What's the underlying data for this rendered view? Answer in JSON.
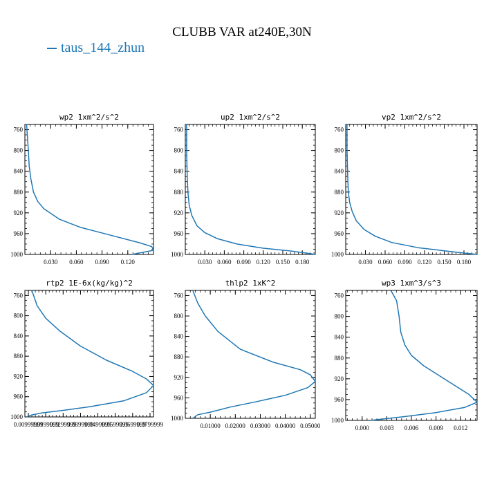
{
  "figure": {
    "title": "CLUBB VAR at240E,30N",
    "legend": {
      "label": "taus_144_zhun",
      "color": "#1f77b4"
    }
  },
  "chart_data": [
    {
      "type": "line",
      "title": "wp2  1xm^2/s^2",
      "xlim": [
        0.0,
        0.15
      ],
      "ylim": [
        1000,
        750
      ],
      "xticks": [
        0.03,
        0.06,
        0.09,
        0.12
      ],
      "xtick_labels": [
        "0.030",
        "0.060",
        "0.090",
        "0.120"
      ],
      "yticks": [
        760,
        800,
        840,
        880,
        920,
        960,
        1000
      ],
      "series": [
        {
          "name": "taus_144_zhun",
          "x": [
            0.002,
            0.003,
            0.004,
            0.005,
            0.007,
            0.01,
            0.015,
            0.022,
            0.04,
            0.065,
            0.1,
            0.135,
            0.148,
            0.15,
            0.125
          ],
          "y": [
            750,
            775,
            800,
            830,
            855,
            880,
            898,
            912,
            932,
            948,
            963,
            978,
            985,
            992,
            1000
          ]
        }
      ]
    },
    {
      "type": "line",
      "title": "up2  1xm^2/s^2",
      "xlim": [
        0.0,
        0.2
      ],
      "ylim": [
        1000,
        750
      ],
      "xticks": [
        0.03,
        0.06,
        0.09,
        0.12,
        0.15,
        0.18
      ],
      "xtick_labels": [
        "0.030",
        "0.060",
        "0.090",
        "0.120",
        "0.150",
        "0.180"
      ],
      "yticks": [
        760,
        800,
        840,
        880,
        920,
        960,
        1000
      ],
      "series": [
        {
          "name": "taus_144_zhun",
          "x": [
            0.002,
            0.002,
            0.003,
            0.004,
            0.006,
            0.01,
            0.018,
            0.03,
            0.05,
            0.08,
            0.12,
            0.16,
            0.19,
            0.2
          ],
          "y": [
            750,
            800,
            850,
            880,
            905,
            925,
            945,
            958,
            970,
            980,
            988,
            993,
            998,
            1000
          ]
        }
      ]
    },
    {
      "type": "line",
      "title": "vp2  1xm^2/s^2",
      "xlim": [
        0.0,
        0.2
      ],
      "ylim": [
        1000,
        750
      ],
      "xticks": [
        0.03,
        0.06,
        0.09,
        0.12,
        0.15,
        0.18
      ],
      "xtick_labels": [
        "0.030",
        "0.060",
        "0.090",
        "0.120",
        "0.150",
        "0.180"
      ],
      "yticks": [
        760,
        800,
        840,
        880,
        920,
        960,
        1000
      ],
      "series": [
        {
          "name": "taus_144_zhun",
          "x": [
            0.002,
            0.002,
            0.003,
            0.004,
            0.006,
            0.01,
            0.016,
            0.028,
            0.045,
            0.07,
            0.11,
            0.15,
            0.185,
            0.2
          ],
          "y": [
            750,
            800,
            850,
            880,
            900,
            918,
            935,
            952,
            965,
            977,
            987,
            993,
            998,
            1000
          ]
        }
      ]
    },
    {
      "type": "line",
      "title": "rtp2  1E-6x(kg/kg)^2",
      "xlim": [
        0.008,
        0.082
      ],
      "ylim": [
        1000,
        750
      ],
      "xticks": [
        0.01,
        0.02,
        0.03,
        0.04,
        0.05,
        0.06,
        0.07,
        0.08
      ],
      "xtick_labels": [
        "0.00999999",
        "0.0199999",
        "0.0299999",
        "0.0399999",
        "0.0499999",
        "0.0599999",
        "0.0699999",
        "0.0799999"
      ],
      "yticks": [
        760,
        800,
        840,
        880,
        920,
        960,
        1000
      ],
      "series": [
        {
          "name": "taus_144_zhun",
          "x": [
            0.012,
            0.015,
            0.02,
            0.028,
            0.04,
            0.055,
            0.07,
            0.078,
            0.082,
            0.078,
            0.065,
            0.045,
            0.03,
            0.018,
            0.012,
            0.009
          ],
          "y": [
            750,
            780,
            805,
            830,
            860,
            888,
            910,
            925,
            938,
            952,
            968,
            980,
            987,
            992,
            996,
            1000
          ]
        }
      ]
    },
    {
      "type": "line",
      "title": "thlp2  1xK^2",
      "xlim": [
        0.0,
        0.052
      ],
      "ylim": [
        1000,
        750
      ],
      "xticks": [
        0.01,
        0.02,
        0.03,
        0.04,
        0.05
      ],
      "xtick_labels": [
        "0.01000",
        "0.02000",
        "0.03000",
        "0.04000",
        "0.05000"
      ],
      "yticks": [
        760,
        800,
        840,
        880,
        920,
        960,
        1000
      ],
      "series": [
        {
          "name": "taus_144_zhun",
          "x": [
            0.003,
            0.005,
            0.008,
            0.013,
            0.022,
            0.035,
            0.046,
            0.05,
            0.052,
            0.049,
            0.04,
            0.028,
            0.018,
            0.01,
            0.005,
            0.003
          ],
          "y": [
            750,
            775,
            800,
            830,
            865,
            890,
            905,
            915,
            928,
            940,
            955,
            968,
            978,
            988,
            993,
            1000
          ]
        }
      ]
    },
    {
      "type": "line",
      "title": "wp3  1xm^3/s^3",
      "xlim": [
        -0.002,
        0.014
      ],
      "ylim": [
        1000,
        750
      ],
      "xticks": [
        0.0,
        0.003,
        0.006,
        0.009,
        0.012
      ],
      "xtick_labels": [
        "0.000",
        "0.003",
        "0.006",
        "0.009",
        "0.012"
      ],
      "yticks": [
        760,
        800,
        840,
        880,
        920,
        960,
        1000
      ],
      "series": [
        {
          "name": "taus_144_zhun",
          "x": [
            0.0035,
            0.0042,
            0.0045,
            0.0047,
            0.0052,
            0.006,
            0.0075,
            0.0095,
            0.0115,
            0.013,
            0.014,
            0.0125,
            0.009,
            0.005,
            0.001
          ],
          "y": [
            750,
            770,
            800,
            830,
            855,
            875,
            895,
            915,
            935,
            950,
            965,
            975,
            985,
            993,
            1000
          ]
        }
      ]
    }
  ]
}
